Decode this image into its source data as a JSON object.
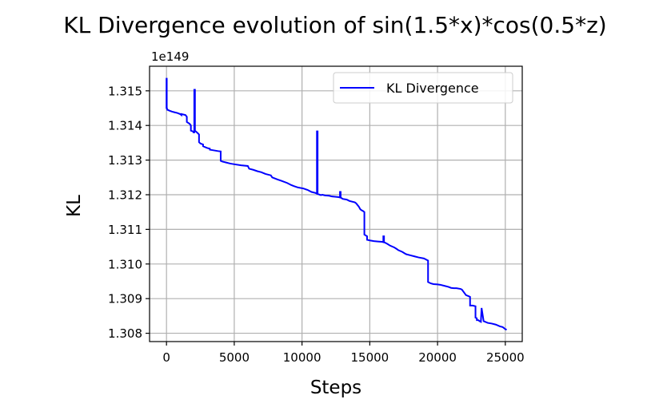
{
  "chart_data": {
    "type": "line",
    "title": "KL Divergence evolution of sin(1.5*x)*cos(0.5*z)",
    "xlabel": "Steps",
    "ylabel": "KL",
    "y_offset_text": "1e149",
    "xlim": [
      -1250,
      26250
    ],
    "ylim": [
      1.30776,
      1.31571
    ],
    "xticks": [
      0,
      5000,
      10000,
      15000,
      20000,
      25000
    ],
    "xtick_labels": [
      "0",
      "5000",
      "10000",
      "15000",
      "20000",
      "25000"
    ],
    "yticks": [
      1.308,
      1.309,
      1.31,
      1.311,
      1.312,
      1.313,
      1.314,
      1.315
    ],
    "ytick_labels": [
      "1.308",
      "1.309",
      "1.310",
      "1.311",
      "1.312",
      "1.313",
      "1.314",
      "1.315"
    ],
    "grid": true,
    "legend_position": "top-right",
    "series": [
      {
        "name": "KL Divergence",
        "color": "#0000ff",
        "x": [
          0,
          0,
          20,
          20,
          60,
          100,
          200,
          400,
          600,
          800,
          1000,
          1100,
          1100,
          1400,
          1500,
          1500,
          1700,
          1800,
          1800,
          2000,
          2000,
          2050,
          2050,
          2100,
          2100,
          2300,
          2400,
          2400,
          2500,
          2700,
          2700,
          3000,
          3200,
          3200,
          3500,
          3800,
          4000,
          4000,
          4100,
          4400,
          4700,
          5000,
          5500,
          6000,
          6100,
          6400,
          6700,
          7000,
          7300,
          7700,
          7800,
          8200,
          8500,
          8900,
          9200,
          9400,
          9700,
          10100,
          10400,
          10700,
          11000,
          11100,
          11100,
          11150,
          11150,
          11300,
          11400,
          11500,
          11700,
          12000,
          12200,
          12500,
          12700,
          12800,
          12800,
          12850,
          12850,
          13000,
          13300,
          13500,
          13900,
          14000,
          14100,
          14200,
          14300,
          14400,
          14500,
          14600,
          14600,
          14800,
          14800,
          15000,
          15300,
          15600,
          15900,
          16000,
          16000,
          16050,
          16050,
          16300,
          16500,
          16800,
          17000,
          17100,
          17400,
          17600,
          17700,
          18000,
          18300,
          18600,
          19000,
          19200,
          19300,
          19300,
          19500,
          19700,
          20000,
          20200,
          20500,
          20800,
          21000,
          21200,
          21400,
          21700,
          21800,
          22100,
          22300,
          22400,
          22400,
          22600,
          22800,
          22800,
          22900,
          22900,
          23000,
          23100,
          23200,
          23200,
          23250,
          23250,
          23400,
          23700,
          24000,
          24300,
          24600,
          24800,
          25000,
          25100
        ],
        "values": [
          1.31448,
          1.31535,
          1.31535,
          1.31452,
          1.31445,
          1.31445,
          1.31443,
          1.3144,
          1.31438,
          1.31436,
          1.31433,
          1.3143,
          1.31433,
          1.3143,
          1.31425,
          1.3141,
          1.31405,
          1.314,
          1.31385,
          1.31382,
          1.3138,
          1.3138,
          1.31503,
          1.31503,
          1.31385,
          1.31378,
          1.31374,
          1.31352,
          1.31348,
          1.31345,
          1.3134,
          1.31335,
          1.31333,
          1.3133,
          1.31328,
          1.31326,
          1.31325,
          1.31298,
          1.31296,
          1.31293,
          1.3129,
          1.31288,
          1.31285,
          1.31283,
          1.31275,
          1.31272,
          1.31268,
          1.31265,
          1.3126,
          1.31256,
          1.3125,
          1.31244,
          1.3124,
          1.31234,
          1.31228,
          1.31225,
          1.31221,
          1.31218,
          1.31214,
          1.31208,
          1.31205,
          1.31203,
          1.31383,
          1.31383,
          1.31203,
          1.312,
          1.31199,
          1.312,
          1.31198,
          1.31197,
          1.31195,
          1.31194,
          1.31193,
          1.31192,
          1.31208,
          1.31208,
          1.31192,
          1.31188,
          1.31186,
          1.31182,
          1.31178,
          1.31175,
          1.3117,
          1.31165,
          1.31158,
          1.31155,
          1.31153,
          1.3115,
          1.31085,
          1.3108,
          1.3107,
          1.31068,
          1.31066,
          1.31065,
          1.31064,
          1.31063,
          1.3108,
          1.3108,
          1.31063,
          1.31058,
          1.31053,
          1.31048,
          1.31043,
          1.3104,
          1.31035,
          1.3103,
          1.31028,
          1.31025,
          1.31022,
          1.31019,
          1.31016,
          1.31012,
          1.3101,
          1.30948,
          1.30944,
          1.30942,
          1.30941,
          1.3094,
          1.30937,
          1.30934,
          1.30931,
          1.3093,
          1.3093,
          1.30928,
          1.30926,
          1.3091,
          1.30907,
          1.30905,
          1.3088,
          1.3088,
          1.30878,
          1.30845,
          1.30843,
          1.30838,
          1.30838,
          1.30835,
          1.30833,
          1.30835,
          1.30873,
          1.30873,
          1.30835,
          1.3083,
          1.30828,
          1.30825,
          1.3082,
          1.30818,
          1.30812,
          1.3081
        ]
      }
    ]
  }
}
